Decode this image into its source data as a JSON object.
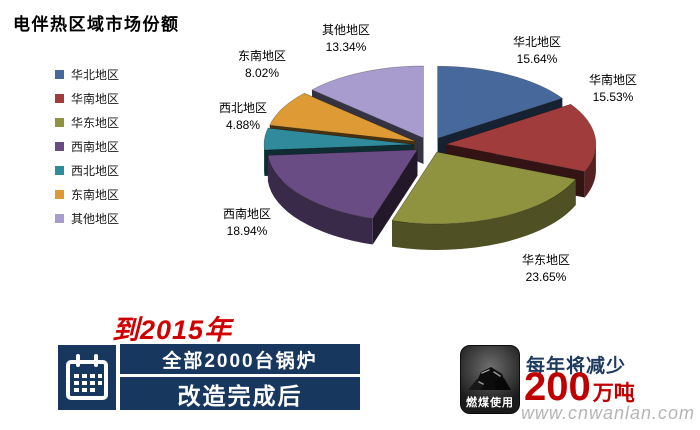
{
  "title": "电伴热区域市场份额",
  "chart_data": {
    "type": "pie",
    "style": "3d-exploded",
    "title": "电伴热区域市场份额",
    "legend_position": "left",
    "categories": [
      "华北地区",
      "华南地区",
      "华东地区",
      "西南地区",
      "西北地区",
      "东南地区",
      "其他地区"
    ],
    "values": [
      15.64,
      15.53,
      23.65,
      18.94,
      4.88,
      8.02,
      13.34
    ],
    "pct_labels": [
      "15.64%",
      "15.53%",
      "23.65%",
      "18.94%",
      "4.88%",
      "8.02%",
      "13.34%"
    ],
    "colors": [
      "#46689B",
      "#A03C3C",
      "#8F923F",
      "#6A4C84",
      "#2F8A9B",
      "#DD9A35",
      "#A79CCD"
    ]
  },
  "banner": {
    "headline": "到2015年",
    "line1": "全部2000台锅炉",
    "line2": "改造完成后",
    "accent_color": "#D00000",
    "box_color": "#17375E"
  },
  "reduction": {
    "badge_label": "燃煤使用",
    "line1": "每年将减少",
    "amount": "200",
    "unit": "万吨",
    "amount_color": "#C00000"
  },
  "watermark": "www.cnwanlan.com"
}
